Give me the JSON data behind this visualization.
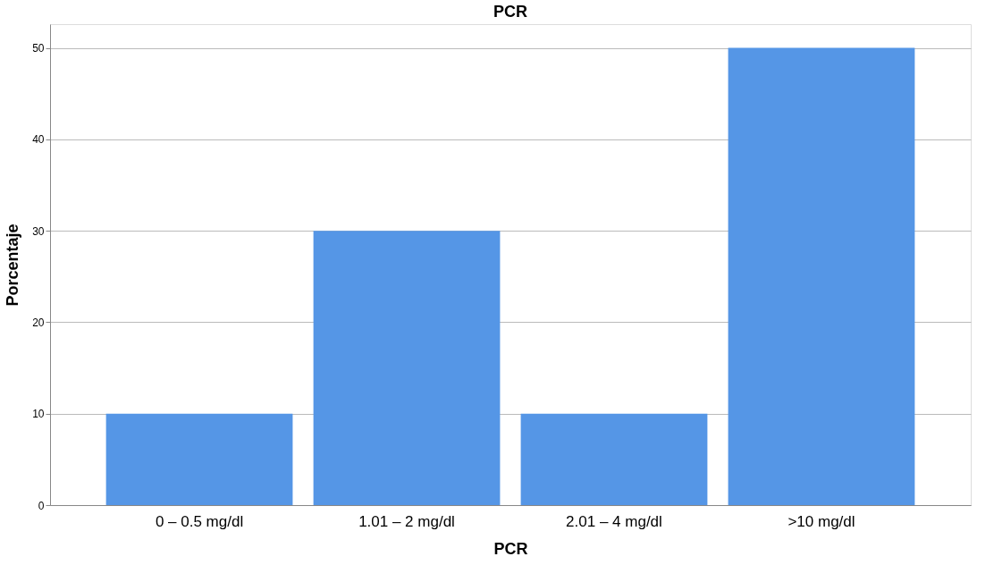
{
  "chart_data": {
    "type": "bar",
    "title": "PCR",
    "xlabel": "PCR",
    "ylabel": "Porcentaje",
    "categories": [
      "0 – 0.5 mg/dl",
      "1.01 – 2 mg/dl",
      "2.01 – 4 mg/dl",
      ">10 mg/dl"
    ],
    "values": [
      10,
      30,
      10,
      50
    ],
    "color": "#5596e6",
    "ylim": [
      0,
      52.6
    ],
    "yticks": [
      0,
      10,
      20,
      30,
      40,
      50
    ],
    "grid": "y",
    "legend": false
  }
}
